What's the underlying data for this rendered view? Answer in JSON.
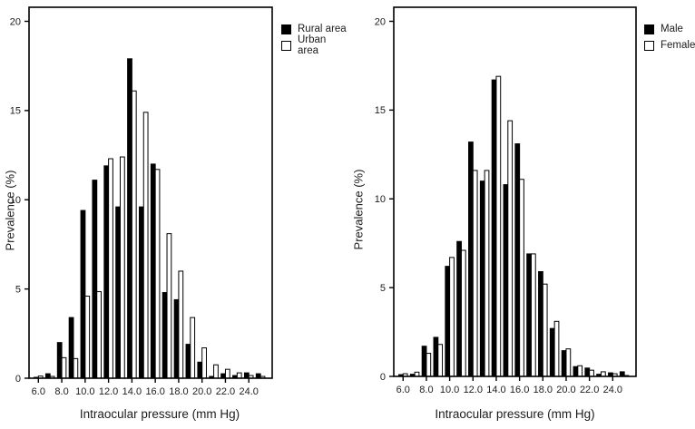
{
  "figure": {
    "background": "#ffffff",
    "text_color": "#1c1c1c",
    "axis_color": "#000000",
    "bar_fill_primary": "#000000",
    "bar_fill_secondary": "#ffffff",
    "bar_stroke": "#000000"
  },
  "chart_data": [
    {
      "type": "bar",
      "panel": "left",
      "title": "",
      "xlabel": "Intraocular pressure (mm Hg)",
      "ylabel": "Prevalence (%)",
      "ylim": [
        0,
        20
      ],
      "xlim": [
        5.2,
        26.0
      ],
      "grid": false,
      "legend_position": "top-right-outside",
      "ytick_values": [
        0,
        5,
        10,
        15,
        20
      ],
      "ytick_labels": [
        "0",
        "5",
        "10",
        "15",
        "20"
      ],
      "xtick_values": [
        6,
        8,
        10,
        12,
        14,
        16,
        18,
        20,
        22,
        24
      ],
      "xtick_labels": [
        "6.0",
        "8.0",
        "10.0",
        "12.0",
        "14.0",
        "16.0",
        "18.0",
        "20.0",
        "22.0",
        "24.0"
      ],
      "categories": [
        6,
        7,
        8,
        9,
        10,
        11,
        12,
        13,
        14,
        15,
        16,
        17,
        18,
        19,
        20,
        21,
        22,
        23,
        24,
        25
      ],
      "series": [
        {
          "name": "Rural area",
          "fill": "#000000",
          "values": [
            0.05,
            0.25,
            2.0,
            3.4,
            9.4,
            11.1,
            11.9,
            9.6,
            17.9,
            9.6,
            12.0,
            4.8,
            4.4,
            1.9,
            0.9,
            0.1,
            0.25,
            0.15,
            0.3,
            0.25
          ]
        },
        {
          "name": "Urban area",
          "fill": "#ffffff",
          "values": [
            0.12,
            0.1,
            1.15,
            1.1,
            4.6,
            4.85,
            12.3,
            12.4,
            16.1,
            14.9,
            11.7,
            8.1,
            6.0,
            3.4,
            1.7,
            0.75,
            0.5,
            0.3,
            0.15,
            0.1
          ]
        }
      ]
    },
    {
      "type": "bar",
      "panel": "right",
      "title": "",
      "xlabel": "Intraocular pressure (mm Hg)",
      "ylabel": "Prevalence (%)",
      "ylim": [
        0,
        20
      ],
      "xlim": [
        5.2,
        26.0
      ],
      "grid": false,
      "legend_position": "top-right-outside",
      "ytick_values": [
        0,
        5,
        10,
        15,
        20
      ],
      "ytick_labels": [
        "0",
        "5",
        "10",
        "15",
        "20"
      ],
      "xtick_values": [
        6,
        8,
        10,
        12,
        14,
        16,
        18,
        20,
        22,
        24
      ],
      "xtick_labels": [
        "6.0",
        "8.0",
        "10.0",
        "12.0",
        "14.0",
        "16.0",
        "18.0",
        "20.0",
        "22.0",
        "24.0"
      ],
      "categories": [
        6,
        7,
        8,
        9,
        10,
        11,
        12,
        13,
        14,
        15,
        16,
        17,
        18,
        19,
        20,
        21,
        22,
        23,
        24,
        25
      ],
      "series": [
        {
          "name": "Male",
          "fill": "#000000",
          "values": [
            0.1,
            0.12,
            1.7,
            2.2,
            6.2,
            7.6,
            13.2,
            11.0,
            16.7,
            10.8,
            13.1,
            6.9,
            5.9,
            2.7,
            1.45,
            0.55,
            0.47,
            0.12,
            0.2,
            0.26
          ]
        },
        {
          "name": "Female",
          "fill": "#ffffff",
          "values": [
            0.15,
            0.24,
            1.3,
            1.8,
            6.7,
            7.1,
            11.6,
            11.6,
            16.9,
            14.4,
            11.1,
            6.9,
            5.2,
            3.1,
            1.55,
            0.6,
            0.35,
            0.26,
            0.15,
            0.05
          ]
        }
      ]
    }
  ]
}
